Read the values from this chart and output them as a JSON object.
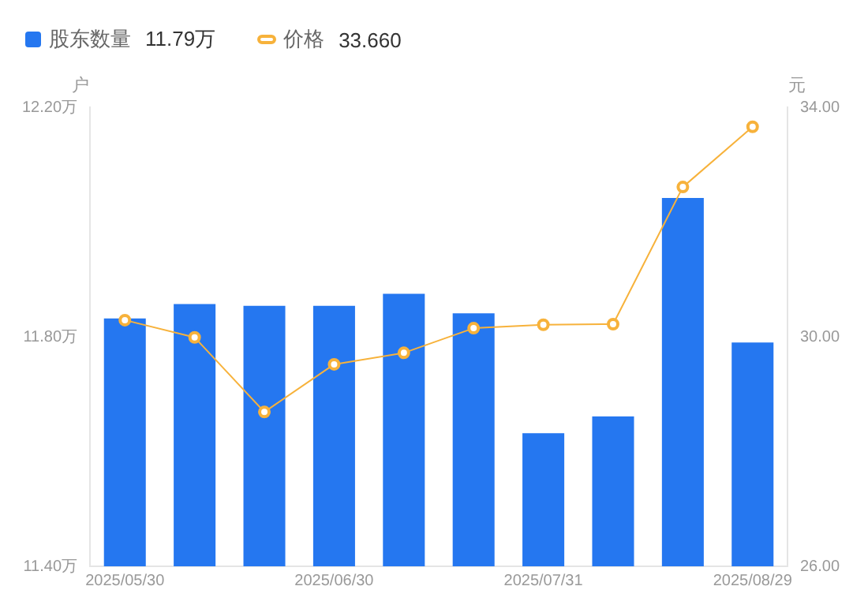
{
  "chart_data": {
    "type": "bar",
    "categories": [
      "2025/05/30",
      null,
      null,
      "2025/06/30",
      null,
      null,
      "2025/07/31",
      null,
      null,
      "2025/08/29"
    ],
    "series": [
      {
        "name": "股东数量",
        "color": "#2577f0",
        "values": [
          11.832,
          11.857,
          11.854,
          11.854,
          11.875,
          11.841,
          11.632,
          11.661,
          12.042,
          11.79
        ]
      },
      {
        "name": "价格",
        "type": "line",
        "axis": "y2",
        "color": "#f7b23b",
        "marker": "circle",
        "values": [
          30.29,
          29.99,
          28.69,
          29.52,
          29.72,
          30.15,
          30.21,
          30.22,
          32.61,
          33.66
        ]
      }
    ],
    "ylabel": "户",
    "y2label": "元",
    "ylim": [
      11.4,
      12.2
    ],
    "yticks": [
      {
        "value": 11.4,
        "label": "11.40万"
      },
      {
        "value": 11.8,
        "label": "11.80万"
      },
      {
        "value": 12.2,
        "label": "12.20万"
      }
    ],
    "y2lim": [
      26,
      34
    ],
    "y2ticks": [
      {
        "value": 26,
        "label": "26.00"
      },
      {
        "value": 30,
        "label": "30.00"
      },
      {
        "value": 34,
        "label": "34.00"
      }
    ],
    "annotations": [
      "11.79万",
      "33.660"
    ],
    "legend": "top left",
    "grid": false
  }
}
